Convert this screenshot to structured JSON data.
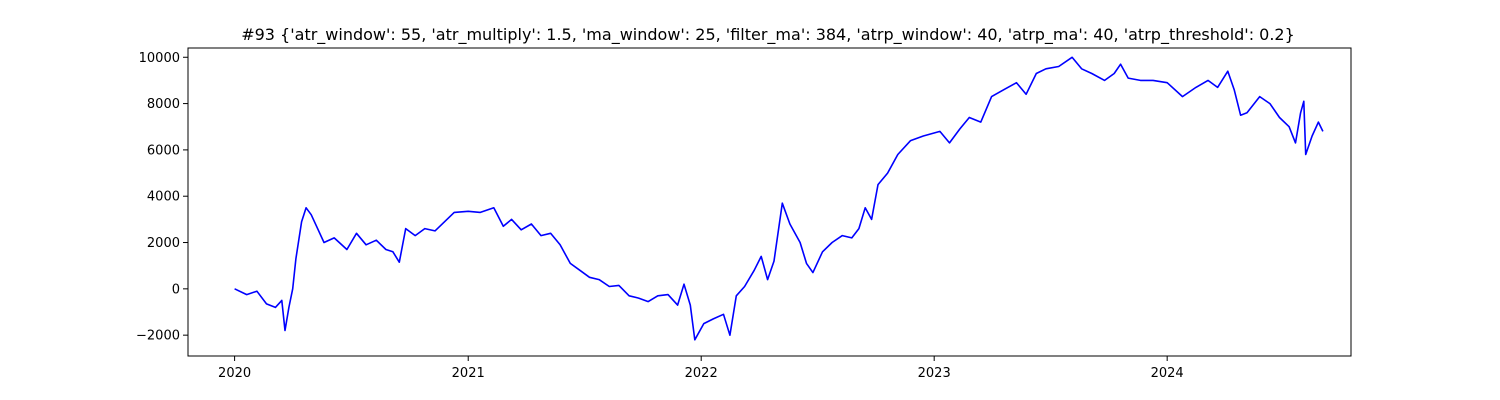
{
  "chart_data": {
    "type": "line",
    "title": "#93 {'atr_window': 55, 'atr_multiply': 1.5, 'ma_window': 25, 'filter_ma': 384, 'atrp_window': 40, 'atrp_ma': 40, 'atrp_threshold': 0.2}",
    "xlabel": "",
    "ylabel": "",
    "x_axis": "date",
    "xlim": [
      "2019-10-20",
      "2024-10-15"
    ],
    "ylim": [
      -2900,
      10400
    ],
    "grid": false,
    "legend": "none",
    "series_color": "#0000ff",
    "x_ticks": [
      {
        "date": "2020-01-01",
        "label": "2020"
      },
      {
        "date": "2021-01-01",
        "label": "2021"
      },
      {
        "date": "2022-01-01",
        "label": "2022"
      },
      {
        "date": "2023-01-01",
        "label": "2023"
      },
      {
        "date": "2024-01-01",
        "label": "2024"
      }
    ],
    "y_ticks": [
      {
        "value": -2000,
        "label": "−2000"
      },
      {
        "value": 0,
        "label": "0"
      },
      {
        "value": 2000,
        "label": "2000"
      },
      {
        "value": 4000,
        "label": "4000"
      },
      {
        "value": 6000,
        "label": "6000"
      },
      {
        "value": 8000,
        "label": "8000"
      },
      {
        "value": 10000,
        "label": "10000"
      }
    ],
    "series": [
      {
        "name": "",
        "points": [
          [
            "2020-01-01",
            0
          ],
          [
            "2020-01-20",
            -250
          ],
          [
            "2020-02-05",
            -100
          ],
          [
            "2020-02-20",
            -650
          ],
          [
            "2020-03-05",
            -800
          ],
          [
            "2020-03-15",
            -500
          ],
          [
            "2020-03-20",
            -1800
          ],
          [
            "2020-03-26",
            -800
          ],
          [
            "2020-04-01",
            0
          ],
          [
            "2020-04-06",
            1300
          ],
          [
            "2020-04-15",
            2900
          ],
          [
            "2020-04-22",
            3500
          ],
          [
            "2020-04-30",
            3200
          ],
          [
            "2020-05-10",
            2600
          ],
          [
            "2020-05-20",
            2000
          ],
          [
            "2020-06-05",
            2200
          ],
          [
            "2020-06-25",
            1700
          ],
          [
            "2020-07-10",
            2400
          ],
          [
            "2020-07-25",
            1900
          ],
          [
            "2020-08-10",
            2100
          ],
          [
            "2020-08-25",
            1700
          ],
          [
            "2020-09-05",
            1600
          ],
          [
            "2020-09-15",
            1150
          ],
          [
            "2020-09-25",
            2600
          ],
          [
            "2020-10-10",
            2300
          ],
          [
            "2020-10-25",
            2600
          ],
          [
            "2020-11-10",
            2500
          ],
          [
            "2020-11-25",
            2900
          ],
          [
            "2020-12-10",
            3300
          ],
          [
            "2021-01-01",
            3350
          ],
          [
            "2021-01-20",
            3300
          ],
          [
            "2021-02-10",
            3500
          ],
          [
            "2021-02-25",
            2700
          ],
          [
            "2021-03-10",
            3000
          ],
          [
            "2021-03-25",
            2550
          ],
          [
            "2021-04-10",
            2800
          ],
          [
            "2021-04-25",
            2300
          ],
          [
            "2021-05-10",
            2400
          ],
          [
            "2021-05-25",
            1900
          ],
          [
            "2021-06-10",
            1100
          ],
          [
            "2021-06-25",
            800
          ],
          [
            "2021-07-10",
            500
          ],
          [
            "2021-07-25",
            400
          ],
          [
            "2021-08-10",
            100
          ],
          [
            "2021-08-25",
            150
          ],
          [
            "2021-09-10",
            -300
          ],
          [
            "2021-09-25",
            -400
          ],
          [
            "2021-10-10",
            -550
          ],
          [
            "2021-10-25",
            -300
          ],
          [
            "2021-11-10",
            -250
          ],
          [
            "2021-11-25",
            -700
          ],
          [
            "2021-12-05",
            200
          ],
          [
            "2021-12-15",
            -700
          ],
          [
            "2021-12-22",
            -2200
          ],
          [
            "2022-01-05",
            -1500
          ],
          [
            "2022-01-20",
            -1300
          ],
          [
            "2022-02-05",
            -1100
          ],
          [
            "2022-02-15",
            -2000
          ],
          [
            "2022-02-25",
            -300
          ],
          [
            "2022-03-10",
            100
          ],
          [
            "2022-03-25",
            800
          ],
          [
            "2022-04-05",
            1400
          ],
          [
            "2022-04-15",
            400
          ],
          [
            "2022-04-25",
            1200
          ],
          [
            "2022-05-08",
            3700
          ],
          [
            "2022-05-20",
            2800
          ],
          [
            "2022-06-05",
            2000
          ],
          [
            "2022-06-15",
            1100
          ],
          [
            "2022-06-25",
            700
          ],
          [
            "2022-07-10",
            1600
          ],
          [
            "2022-07-25",
            2000
          ],
          [
            "2022-08-10",
            2300
          ],
          [
            "2022-08-25",
            2200
          ],
          [
            "2022-09-05",
            2600
          ],
          [
            "2022-09-15",
            3500
          ],
          [
            "2022-09-25",
            3000
          ],
          [
            "2022-10-05",
            4500
          ],
          [
            "2022-10-20",
            5000
          ],
          [
            "2022-11-05",
            5800
          ],
          [
            "2022-11-25",
            6400
          ],
          [
            "2022-12-15",
            6600
          ],
          [
            "2023-01-10",
            6800
          ],
          [
            "2023-01-25",
            6300
          ],
          [
            "2023-02-10",
            6900
          ],
          [
            "2023-02-25",
            7400
          ],
          [
            "2023-03-15",
            7200
          ],
          [
            "2023-04-01",
            8300
          ],
          [
            "2023-04-20",
            8600
          ],
          [
            "2023-05-10",
            8900
          ],
          [
            "2023-05-25",
            8400
          ],
          [
            "2023-06-10",
            9300
          ],
          [
            "2023-06-25",
            9500
          ],
          [
            "2023-07-15",
            9600
          ],
          [
            "2023-08-05",
            10000
          ],
          [
            "2023-08-20",
            9500
          ],
          [
            "2023-09-05",
            9300
          ],
          [
            "2023-09-25",
            9000
          ],
          [
            "2023-10-10",
            9300
          ],
          [
            "2023-10-20",
            9700
          ],
          [
            "2023-11-01",
            9100
          ],
          [
            "2023-11-20",
            9000
          ],
          [
            "2023-12-10",
            9000
          ],
          [
            "2024-01-01",
            8900
          ],
          [
            "2024-01-25",
            8300
          ],
          [
            "2024-02-15",
            8700
          ],
          [
            "2024-03-05",
            9000
          ],
          [
            "2024-03-20",
            8700
          ],
          [
            "2024-04-05",
            9400
          ],
          [
            "2024-04-15",
            8600
          ],
          [
            "2024-04-25",
            7500
          ],
          [
            "2024-05-05",
            7600
          ],
          [
            "2024-05-25",
            8300
          ],
          [
            "2024-06-10",
            8000
          ],
          [
            "2024-06-25",
            7400
          ],
          [
            "2024-07-10",
            7000
          ],
          [
            "2024-07-20",
            6300
          ],
          [
            "2024-07-28",
            7600
          ],
          [
            "2024-08-02",
            8100
          ],
          [
            "2024-08-05",
            5800
          ],
          [
            "2024-08-15",
            6600
          ],
          [
            "2024-08-25",
            7200
          ],
          [
            "2024-09-01",
            6800
          ]
        ]
      }
    ]
  }
}
